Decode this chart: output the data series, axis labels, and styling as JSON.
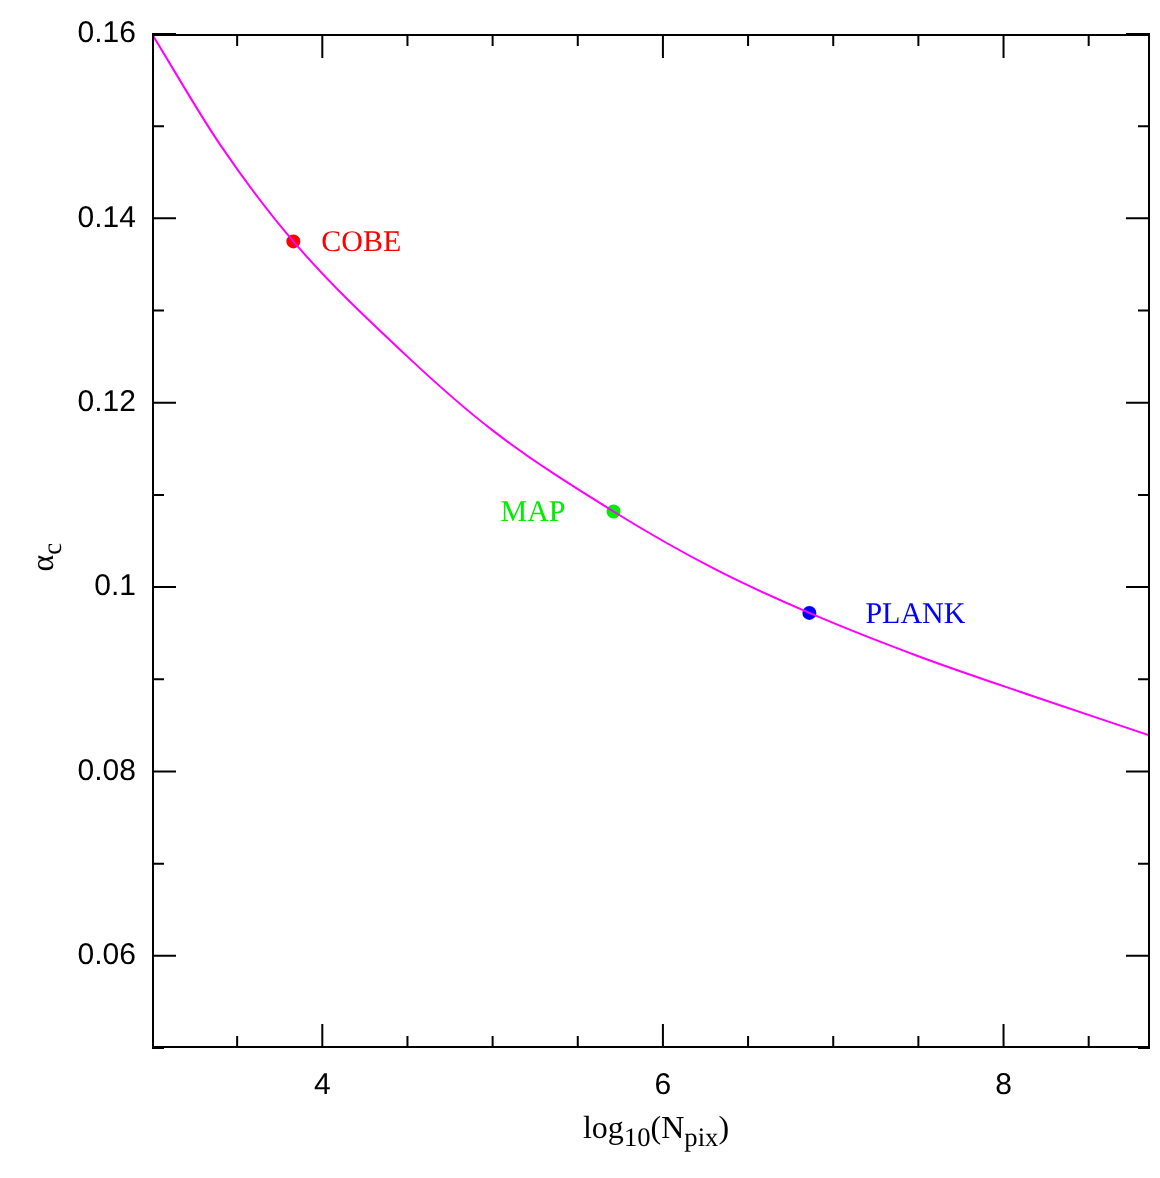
{
  "chart_data": {
    "type": "line",
    "xlabel": "log$_{10}$(N$_{pix}$)",
    "ylabel": "α$_{c}$",
    "xlim": [
      3,
      8.86
    ],
    "ylim": [
      0.05,
      0.16
    ],
    "xticks": [
      {
        "value": 3.5,
        "label": null
      },
      4,
      {
        "value": 4.5,
        "label": null
      },
      {
        "value": 5,
        "label": null
      },
      {
        "value": 5.5,
        "label": null
      },
      6,
      {
        "value": 6.5,
        "label": null
      },
      {
        "value": 7,
        "label": null
      },
      {
        "value": 7.5,
        "label": null
      },
      8,
      {
        "value": 8.5,
        "label": null
      }
    ],
    "yticks": [
      {
        "value": 0.05,
        "label": null
      },
      0.06,
      {
        "value": 0.07,
        "label": null
      },
      0.08,
      {
        "value": 0.09,
        "label": null
      },
      0.1,
      {
        "value": 0.11,
        "label": null
      },
      0.12,
      {
        "value": 0.13,
        "label": null
      },
      0.14,
      {
        "value": 0.15,
        "label": null
      },
      0.16
    ],
    "grid": false,
    "legend": false,
    "series": [
      {
        "color": "#ff00ff",
        "marker": "none",
        "x": [
          3,
          3.4,
          3.83,
          4.5,
          5,
          5.71,
          6.3,
          6.86,
          7.5,
          8.2,
          8.86
        ],
        "values": [
          0.16,
          0.148,
          0.1375,
          0.125,
          0.117,
          0.1082,
          0.102,
          0.0972,
          0.0925,
          0.088,
          0.0839
        ]
      },
      {
        "type": "scatter",
        "name": "COBE",
        "color": "#ff0000",
        "marker": "circle",
        "x": [
          3.83
        ],
        "values": [
          0.1375
        ]
      },
      {
        "type": "scatter",
        "name": "MAP",
        "color": "#00ee00",
        "marker": "circle",
        "x": [
          5.71
        ],
        "values": [
          0.1082
        ]
      },
      {
        "type": "scatter",
        "name": "PLANK",
        "color": "#0000ff",
        "marker": "circle",
        "x": [
          6.86
        ],
        "values": [
          0.0972
        ]
      }
    ]
  }
}
